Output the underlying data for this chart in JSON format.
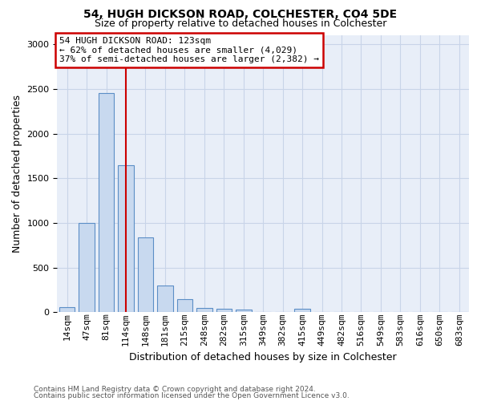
{
  "title1": "54, HUGH DICKSON ROAD, COLCHESTER, CO4 5DE",
  "title2": "Size of property relative to detached houses in Colchester",
  "xlabel": "Distribution of detached houses by size in Colchester",
  "ylabel": "Number of detached properties",
  "footnote1": "Contains HM Land Registry data © Crown copyright and database right 2024.",
  "footnote2": "Contains public sector information licensed under the Open Government Licence v3.0.",
  "bar_labels": [
    "14sqm",
    "47sqm",
    "81sqm",
    "114sqm",
    "148sqm",
    "181sqm",
    "215sqm",
    "248sqm",
    "282sqm",
    "315sqm",
    "349sqm",
    "382sqm",
    "415sqm",
    "449sqm",
    "482sqm",
    "516sqm",
    "549sqm",
    "583sqm",
    "616sqm",
    "650sqm",
    "683sqm"
  ],
  "bar_values": [
    55,
    1000,
    2450,
    1650,
    840,
    300,
    150,
    50,
    35,
    25,
    0,
    0,
    35,
    0,
    0,
    0,
    0,
    0,
    0,
    0,
    0
  ],
  "bar_color": "#c8d9ef",
  "bar_edge_color": "#5b8ec6",
  "vline_x": 3.0,
  "annotation_text": "54 HUGH DICKSON ROAD: 123sqm\n← 62% of detached houses are smaller (4,029)\n37% of semi-detached houses are larger (2,382) →",
  "annotation_box_facecolor": "#ffffff",
  "annotation_box_edgecolor": "#cc0000",
  "vline_color": "#cc0000",
  "ylim_max": 3100,
  "ytick_interval": 500,
  "grid_color": "#c8d4e8",
  "plot_bgcolor": "#e8eef8",
  "fig_bgcolor": "#ffffff",
  "title1_fontsize": 10,
  "title2_fontsize": 9,
  "ylabel_fontsize": 9,
  "xlabel_fontsize": 9,
  "tick_fontsize": 8,
  "annot_fontsize": 8,
  "footnote_fontsize": 6.5
}
